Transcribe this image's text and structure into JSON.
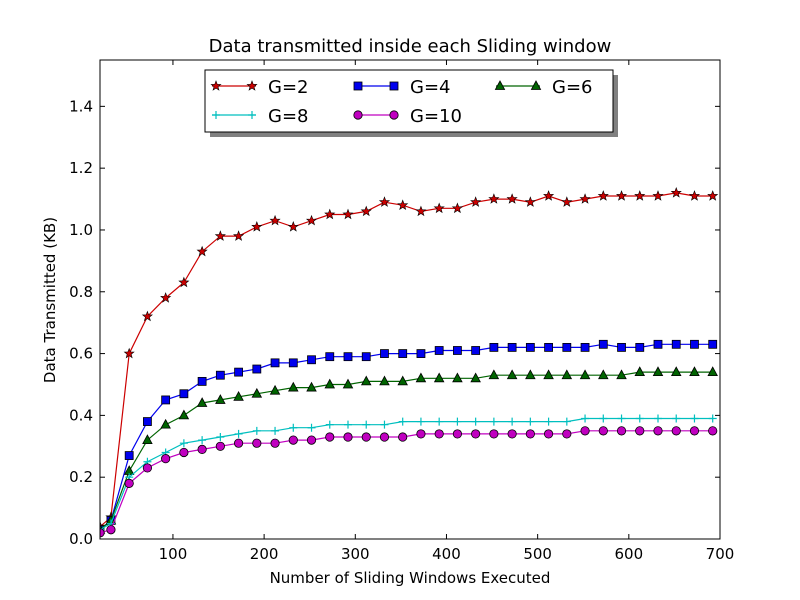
{
  "chart_data": {
    "type": "line",
    "title": "Data transmitted inside each Sliding window",
    "xlabel": "Number of Sliding Windows Executed",
    "ylabel": "Data Transmitted (KB)",
    "xlim": [
      20,
      700
    ],
    "ylim": [
      0.0,
      1.55
    ],
    "xticks": [
      100,
      200,
      300,
      400,
      500,
      600,
      700
    ],
    "yticks": [
      0.0,
      0.2,
      0.4,
      0.6,
      0.8,
      1.0,
      1.2,
      1.4
    ],
    "ytick_labels": [
      "0.0",
      "0.2",
      "0.4",
      "0.6",
      "0.8",
      "1.0",
      "1.2",
      "1.4"
    ],
    "grid": false,
    "legend_position": "upper-center",
    "x": [
      20,
      32,
      52,
      72,
      92,
      112,
      132,
      152,
      172,
      192,
      212,
      232,
      252,
      272,
      292,
      312,
      332,
      352,
      372,
      392,
      412,
      432,
      452,
      472,
      492,
      512,
      532,
      552,
      572,
      592,
      612,
      632,
      652,
      672,
      692
    ],
    "series": [
      {
        "name": "G=2",
        "color": "#cc0000",
        "marker": "star",
        "values": [
          0.04,
          0.07,
          0.6,
          0.72,
          0.78,
          0.83,
          0.93,
          0.98,
          0.98,
          1.01,
          1.03,
          1.01,
          1.03,
          1.05,
          1.05,
          1.06,
          1.09,
          1.08,
          1.06,
          1.07,
          1.07,
          1.09,
          1.1,
          1.1,
          1.09,
          1.11,
          1.09,
          1.1,
          1.11,
          1.11,
          1.11,
          1.11,
          1.12,
          1.11,
          1.11
        ]
      },
      {
        "name": "G=4",
        "color": "#0000ee",
        "marker": "square",
        "values": [
          0.03,
          0.06,
          0.27,
          0.38,
          0.45,
          0.47,
          0.51,
          0.53,
          0.54,
          0.55,
          0.57,
          0.57,
          0.58,
          0.59,
          0.59,
          0.59,
          0.6,
          0.6,
          0.6,
          0.61,
          0.61,
          0.61,
          0.62,
          0.62,
          0.62,
          0.62,
          0.62,
          0.62,
          0.63,
          0.62,
          0.62,
          0.63,
          0.63,
          0.63,
          0.63
        ]
      },
      {
        "name": "G=6",
        "color": "#006400",
        "marker": "triangle",
        "values": [
          0.03,
          0.06,
          0.22,
          0.32,
          0.37,
          0.4,
          0.44,
          0.45,
          0.46,
          0.47,
          0.48,
          0.49,
          0.49,
          0.5,
          0.5,
          0.51,
          0.51,
          0.51,
          0.52,
          0.52,
          0.52,
          0.52,
          0.53,
          0.53,
          0.53,
          0.53,
          0.53,
          0.53,
          0.53,
          0.53,
          0.54,
          0.54,
          0.54,
          0.54,
          0.54
        ]
      },
      {
        "name": "G=8",
        "color": "#00bfbf",
        "marker": "plus",
        "values": [
          0.03,
          0.05,
          0.2,
          0.25,
          0.28,
          0.31,
          0.32,
          0.33,
          0.34,
          0.35,
          0.35,
          0.36,
          0.36,
          0.37,
          0.37,
          0.37,
          0.37,
          0.38,
          0.38,
          0.38,
          0.38,
          0.38,
          0.38,
          0.38,
          0.38,
          0.38,
          0.38,
          0.39,
          0.39,
          0.39,
          0.39,
          0.39,
          0.39,
          0.39,
          0.39
        ]
      },
      {
        "name": "G=10",
        "color": "#c000c0",
        "marker": "circle",
        "values": [
          0.02,
          0.03,
          0.18,
          0.23,
          0.26,
          0.28,
          0.29,
          0.3,
          0.31,
          0.31,
          0.31,
          0.32,
          0.32,
          0.33,
          0.33,
          0.33,
          0.33,
          0.33,
          0.34,
          0.34,
          0.34,
          0.34,
          0.34,
          0.34,
          0.34,
          0.34,
          0.34,
          0.35,
          0.35,
          0.35,
          0.35,
          0.35,
          0.35,
          0.35,
          0.35
        ]
      }
    ]
  }
}
